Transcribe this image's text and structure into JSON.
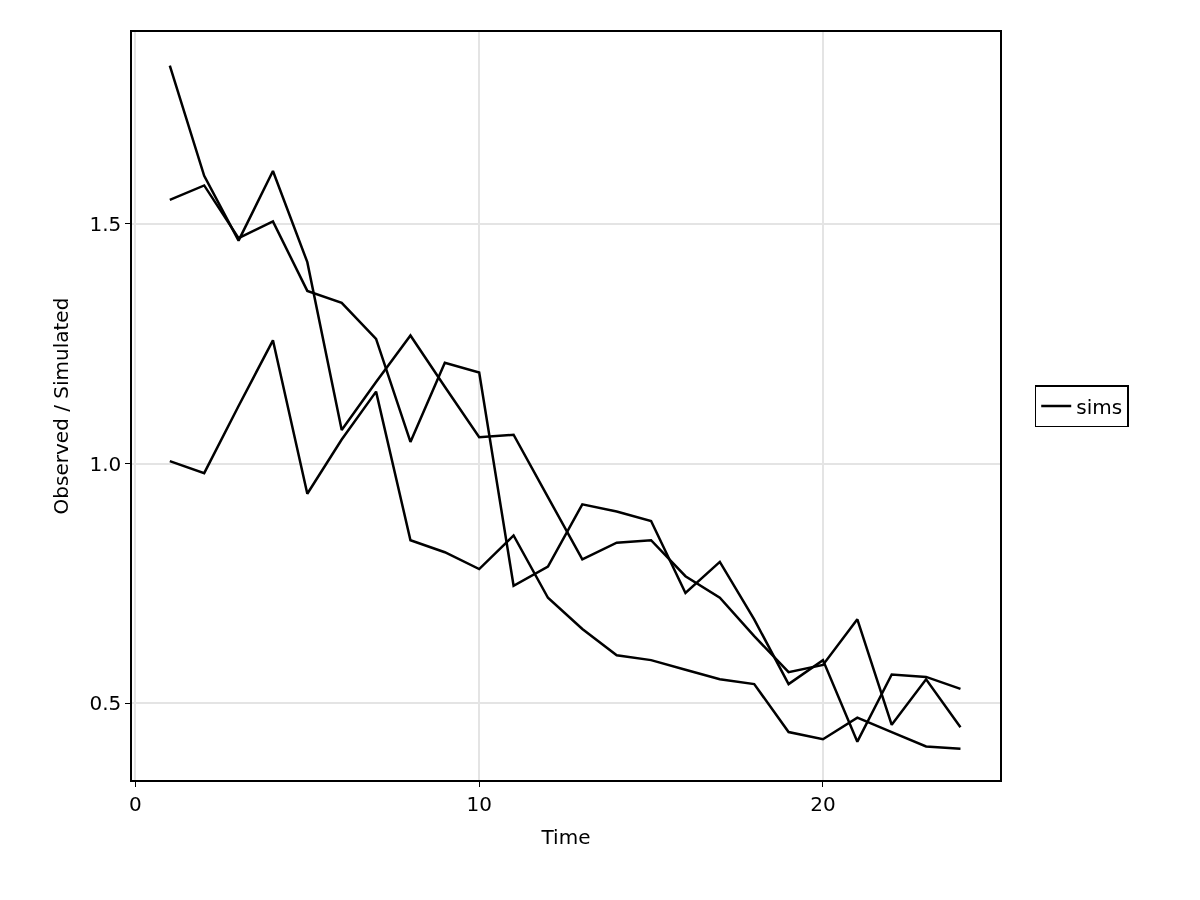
{
  "chart_data": {
    "type": "line",
    "xlabel": "Time",
    "ylabel": "Observed / Simulated",
    "x": [
      1,
      2,
      3,
      4,
      5,
      6,
      7,
      8,
      9,
      10,
      11,
      12,
      13,
      14,
      15,
      16,
      17,
      18,
      19,
      20,
      21,
      22,
      23,
      24
    ],
    "series": [
      {
        "name": "sims",
        "color": "#000000",
        "values": [
          1.83,
          1.6,
          1.465,
          1.61,
          1.42,
          1.07,
          1.17,
          1.267,
          1.16,
          1.055,
          1.06,
          0.93,
          0.8,
          0.835,
          0.84,
          0.765,
          0.72,
          0.64,
          0.565,
          0.58,
          0.675,
          0.455,
          0.55,
          0.45
        ]
      },
      {
        "color": "#000000",
        "values": [
          1.55,
          1.58,
          1.47,
          1.505,
          1.36,
          1.335,
          1.26,
          1.045,
          1.21,
          1.19,
          0.745,
          0.785,
          0.915,
          0.9,
          0.88,
          0.73,
          0.795,
          0.675,
          0.54,
          0.59,
          0.42,
          0.56,
          0.555,
          0.53
        ]
      },
      {
        "color": "#000000",
        "values": [
          1.005,
          0.98,
          1.12,
          1.257,
          0.937,
          1.05,
          1.15,
          0.84,
          0.815,
          0.78,
          0.85,
          0.72,
          0.655,
          0.6,
          0.59,
          0.57,
          0.55,
          0.54,
          0.44,
          0.425,
          0.47,
          0.44,
          0.41,
          0.405
        ]
      }
    ],
    "xlim": [
      -0.1,
      25.15
    ],
    "xticks": [
      0,
      10,
      20
    ],
    "ylim": [
      0.34,
      1.9
    ],
    "yticks": [
      0.5,
      {
        "value": 1.0,
        "label": "1.0"
      },
      1.5
    ],
    "grid": true,
    "legend": "right",
    "line_style": "solid",
    "marker": "none"
  }
}
